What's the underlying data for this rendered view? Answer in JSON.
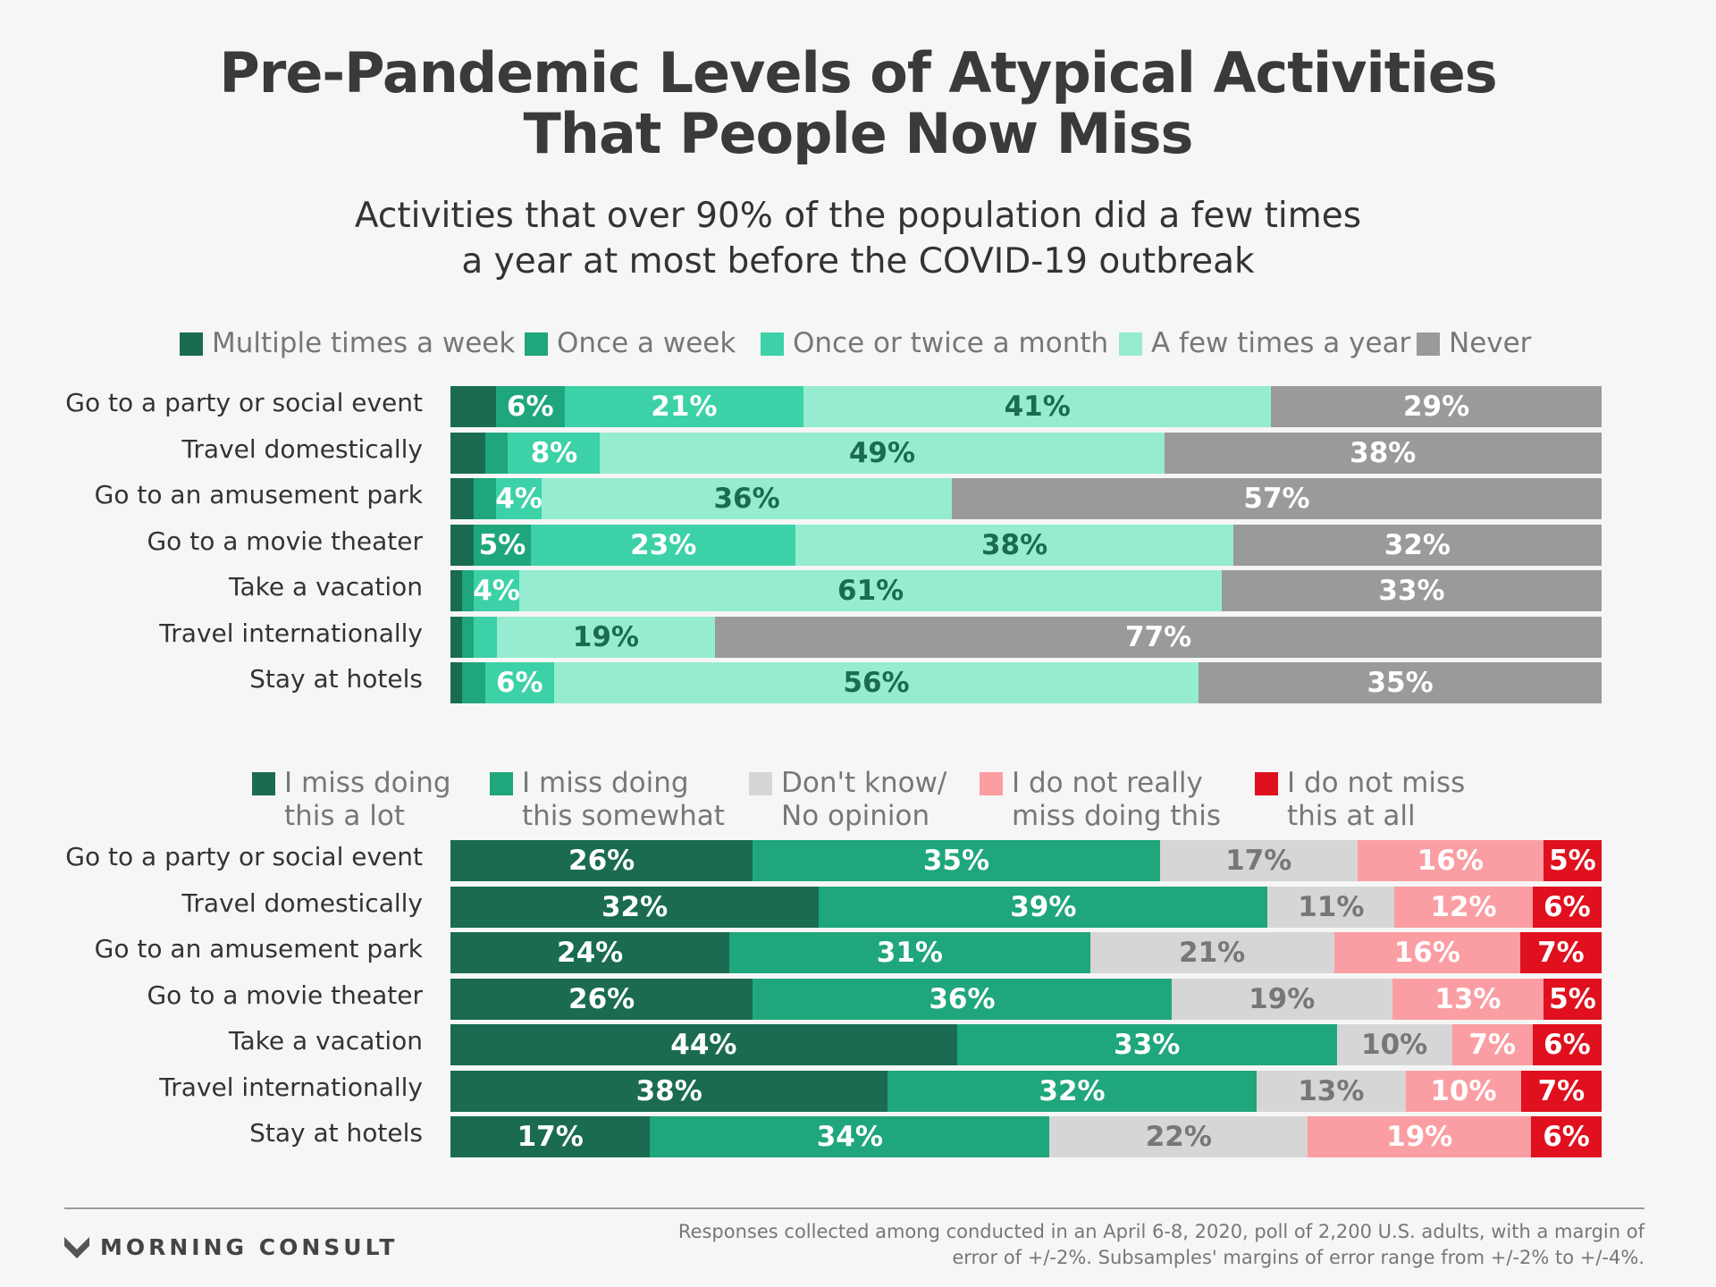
{
  "title": "Pre-Pandemic Levels of Atypical Activities\nThat People Now Miss",
  "subtitle": "Activities that over 90% of the population did a few times\na year at most before the COVID-19 outbreak",
  "footer": {
    "brand": "MORNING CONSULT",
    "source": "Responses collected among conducted in an April 6-8, 2020, poll of 2,200 U.S. adults, with a margin of error of +/-2%. Subsamples' margins of error range from +/-2% to +/-4%."
  },
  "chart_data": [
    {
      "type": "bar",
      "orientation": "horizontal",
      "stacked": true,
      "categories": [
        "Go to a party or social event",
        "Travel domestically",
        "Go to an amusement park",
        "Go to a movie theater",
        "Take a vacation",
        "Travel internationally",
        "Stay at hotels"
      ],
      "series": [
        {
          "name": "Multiple times a week",
          "color": "#1a6b52",
          "text_color": "#ffffff",
          "values": [
            4,
            3,
            2,
            2,
            1,
            1,
            1
          ]
        },
        {
          "name": "Once a week",
          "color": "#1fa67c",
          "text_color": "#ffffff",
          "values": [
            6,
            2,
            2,
            5,
            1,
            1,
            2
          ]
        },
        {
          "name": "Once or twice a month",
          "color": "#3dd1a7",
          "text_color": "#ffffff",
          "values": [
            21,
            8,
            4,
            23,
            4,
            2,
            6
          ]
        },
        {
          "name": "A few times a year",
          "color": "#96ecd0",
          "text_color": "#1a6b52",
          "values": [
            41,
            49,
            36,
            38,
            61,
            19,
            56
          ]
        },
        {
          "name": "Never",
          "color": "#9a9a9a",
          "text_color": "#ffffff",
          "values": [
            29,
            38,
            57,
            32,
            33,
            77,
            35
          ]
        }
      ],
      "data_labels": [
        [
          "",
          "6%",
          "21%",
          "41%",
          "29%"
        ],
        [
          "",
          "",
          "8%",
          "49%",
          "38%"
        ],
        [
          "",
          "",
          "4%",
          "36%",
          "57%"
        ],
        [
          "",
          "5%",
          "23%",
          "38%",
          "32%"
        ],
        [
          "",
          "",
          "4%",
          "61%",
          "33%"
        ],
        [
          "",
          "",
          "",
          "19%",
          "77%"
        ],
        [
          "",
          "",
          "6%",
          "56%",
          "35%"
        ]
      ],
      "legend": "top"
    },
    {
      "type": "bar",
      "orientation": "horizontal",
      "stacked": true,
      "categories": [
        "Go to a party or social event",
        "Travel domestically",
        "Go to an amusement park",
        "Go to a movie theater",
        "Take a vacation",
        "Travel internationally",
        "Stay at hotels"
      ],
      "series": [
        {
          "name": "I miss doing\nthis a lot",
          "color": "#1a6b52",
          "text_color": "#ffffff",
          "values": [
            26,
            32,
            24,
            26,
            44,
            38,
            17
          ]
        },
        {
          "name": "I miss doing\nthis somewhat",
          "color": "#1fa67c",
          "text_color": "#ffffff",
          "values": [
            35,
            39,
            31,
            36,
            33,
            32,
            34
          ]
        },
        {
          "name": "Don't know/\nNo opinion",
          "color": "#d6d6d6",
          "text_color": "#777777",
          "values": [
            17,
            11,
            21,
            19,
            10,
            13,
            22
          ]
        },
        {
          "name": "I do not really\nmiss doing this",
          "color": "#fa9ea3",
          "text_color": "#ffffff",
          "values": [
            16,
            12,
            16,
            13,
            7,
            10,
            19
          ]
        },
        {
          "name": "I do not miss\nthis at all",
          "color": "#e0101f",
          "text_color": "#ffffff",
          "values": [
            5,
            6,
            7,
            5,
            6,
            7,
            6
          ]
        }
      ],
      "data_labels": [
        [
          "26%",
          "35%",
          "17%",
          "16%",
          "5%"
        ],
        [
          "32%",
          "39%",
          "11%",
          "12%",
          "6%"
        ],
        [
          "24%",
          "31%",
          "21%",
          "16%",
          "7%"
        ],
        [
          "26%",
          "36%",
          "19%",
          "13%",
          "5%"
        ],
        [
          "44%",
          "33%",
          "10%",
          "7%",
          "6%"
        ],
        [
          "38%",
          "32%",
          "13%",
          "10%",
          "7%"
        ],
        [
          "17%",
          "34%",
          "22%",
          "19%",
          "6%"
        ]
      ],
      "legend": "top"
    }
  ]
}
